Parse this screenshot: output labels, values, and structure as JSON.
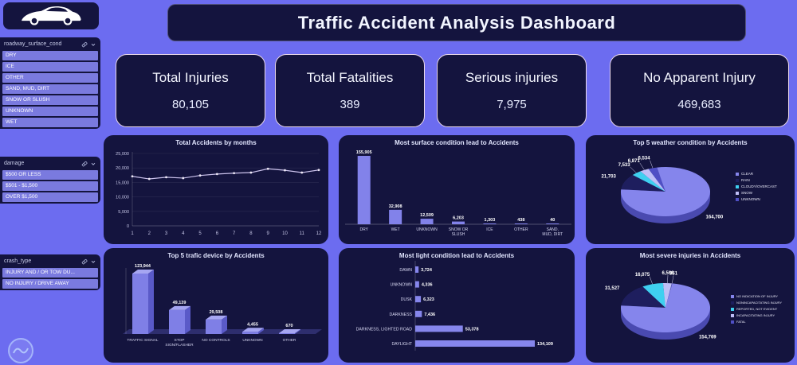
{
  "header": {
    "title": "Traffic Accident Analysis Dashboard"
  },
  "filters": [
    {
      "name": "roadway_surface_cond",
      "items": [
        "DRY",
        "ICE",
        "OTHER",
        "SAND, MUD, DIRT",
        "SNOW OR SLUSH",
        "UNKNOWN",
        "WET"
      ]
    },
    {
      "name": "damage",
      "items": [
        "$500 OR LESS",
        "$501 - $1,500",
        "OVER $1,500"
      ]
    },
    {
      "name": "crash_type",
      "items": [
        "INJURY AND / OR TOW DU...",
        "NO INJURY / DRIVE AWAY"
      ]
    }
  ],
  "kpis": [
    {
      "label": "Total Injuries",
      "value": "80,105"
    },
    {
      "label": "Total Fatalities",
      "value": "389"
    },
    {
      "label": "Serious injuries",
      "value": "7,975"
    },
    {
      "label": "No Apparent Injury",
      "value": "469,683"
    }
  ],
  "chart_data": [
    {
      "type": "line",
      "title": "Total Accidents by months",
      "x": [
        1,
        2,
        3,
        4,
        5,
        6,
        7,
        8,
        9,
        10,
        11,
        12
      ],
      "values": [
        17100,
        16200,
        16800,
        16500,
        17400,
        17900,
        18200,
        18400,
        19700,
        19200,
        18400,
        19300
      ],
      "ylim": [
        0,
        25000
      ],
      "ytick": 5000,
      "line_color": "#CDC4EE",
      "grid": true
    },
    {
      "type": "bar",
      "title": "Most surface condition lead to Accidents",
      "categories": [
        "DRY",
        "WET",
        "UNKNOWN",
        "SNOW OR SLUSH",
        "ICE",
        "OTHER",
        "SAND, MUD, DIRT"
      ],
      "values": [
        155905,
        32908,
        12509,
        6203,
        1303,
        438,
        40
      ],
      "bar_color": "#8282EA"
    },
    {
      "type": "pie",
      "title": "Top 5 weather condition by Accidents",
      "slices": [
        {
          "label": "CLEAR",
          "value": 164700,
          "color": "#8585EC"
        },
        {
          "label": "RAIN",
          "value": 21703,
          "color": "#1E1E5E"
        },
        {
          "label": "CLOUDY/OVERCAST",
          "value": 7533,
          "color": "#3FD0F0"
        },
        {
          "label": "SNOW",
          "value": 6871,
          "color": "#BFBFF7"
        },
        {
          "label": "UNKNOWN",
          "value": 6534,
          "color": "#5050C5"
        }
      ],
      "draw_order": [
        1,
        2,
        3,
        4,
        0
      ],
      "start_angle": 185,
      "legend_position": "right"
    },
    {
      "type": "bar3d",
      "title": "Top 5 trafic device by Accidents",
      "categories": [
        "TRAFFIC SIGNAL",
        "STOP SIGN/FLASHER",
        "NO CONTROLS",
        "UNKNOWN",
        "OTHER"
      ],
      "values": [
        123944,
        49139,
        29508,
        4455,
        670
      ],
      "bar_color": "#7F7FE6"
    },
    {
      "type": "hbar",
      "title": "Most light condition lead to Accidents",
      "categories": [
        "DAWN",
        "UNKNOWN",
        "DUSK",
        "DARKNESS",
        "DARKNESS, LIGHTED ROAD",
        "DAYLIGHT"
      ],
      "values": [
        3724,
        4336,
        6323,
        7436,
        53378,
        134109
      ],
      "bar_color": "#8686EC"
    },
    {
      "type": "pie",
      "title": "Most severe injuries in Accidents",
      "slices": [
        {
          "label": "NO INDICATION OF INJURY",
          "value": 154769,
          "color": "#8585EC"
        },
        {
          "label": "NONINCAPACITATING INJURY",
          "value": 31527,
          "color": "#1E1E5E"
        },
        {
          "label": "REPORTED, NOT EVIDENT",
          "value": 16075,
          "color": "#3FD0F0"
        },
        {
          "label": "INCAPACITATING INJURY",
          "value": 6566,
          "color": "#BFBFF7"
        },
        {
          "label": "FATAL",
          "value": 351,
          "color": "#5050C5"
        }
      ],
      "draw_order": [
        1,
        2,
        3,
        4,
        0
      ],
      "start_angle": 185,
      "legend_position": "right"
    }
  ],
  "colors": {
    "background": "#6C6CF0",
    "panel": "#14143E",
    "accent_bar": "#8282EA",
    "kpi_border": "#EBD9EA"
  }
}
